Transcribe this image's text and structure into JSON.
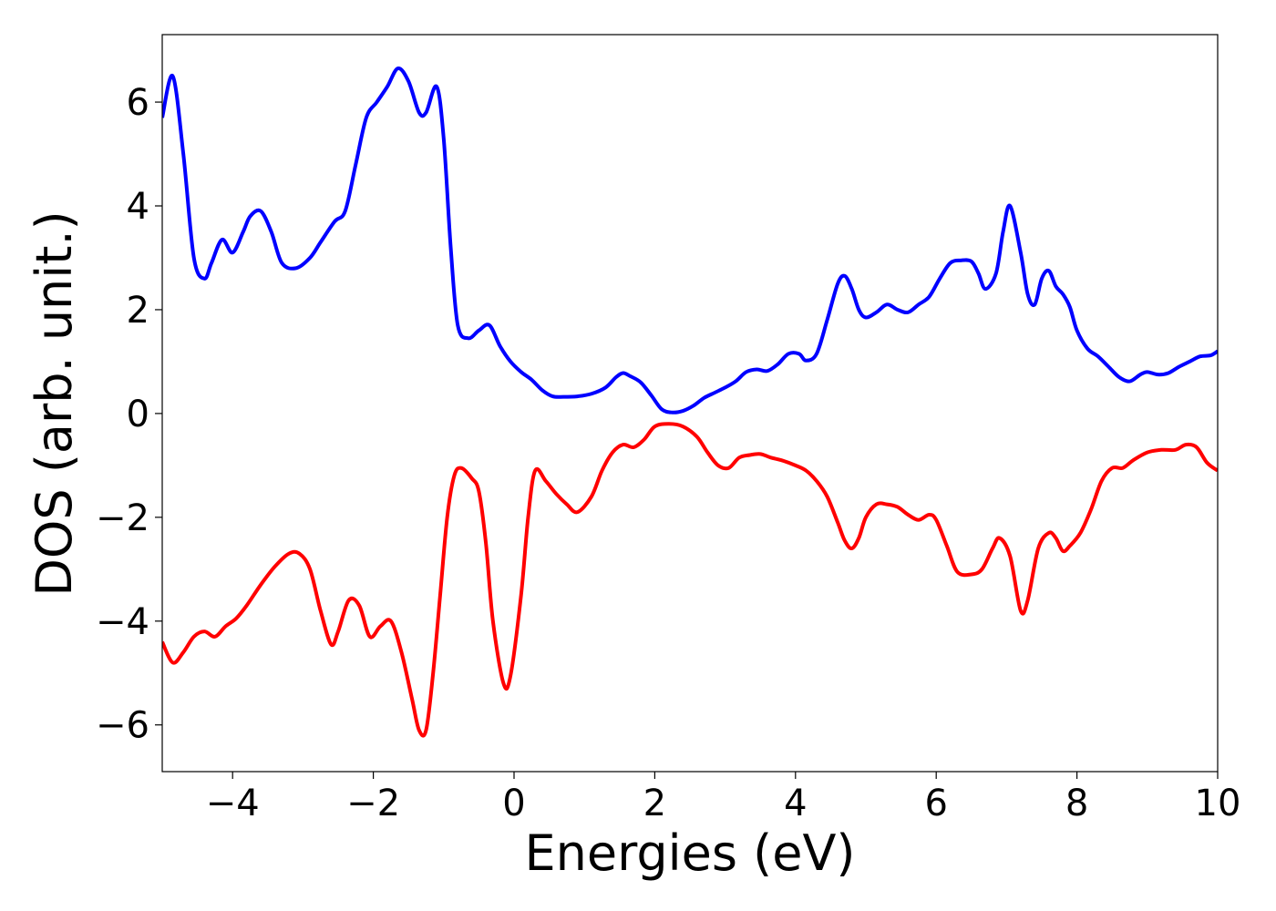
{
  "chart_data": {
    "type": "line",
    "title": "",
    "xlabel": "Energies (eV)",
    "ylabel": "DOS (arb. unit.)",
    "xlim": [
      -5,
      10
    ],
    "ylim": [
      -6.9,
      7.3
    ],
    "grid": false,
    "legend": "none",
    "x_ticks": [
      -4,
      -2,
      0,
      2,
      4,
      6,
      8,
      10
    ],
    "x_tick_labels": [
      "−4",
      "−2",
      "0",
      "2",
      "4",
      "6",
      "8",
      "10"
    ],
    "y_ticks": [
      -6,
      -4,
      -2,
      0,
      2,
      4,
      6
    ],
    "y_tick_labels": [
      "−6",
      "−4",
      "−2",
      "0",
      "2",
      "4",
      "6"
    ],
    "series": [
      {
        "color": "#0000ff",
        "x": [
          -5.0,
          -4.85,
          -4.7,
          -4.55,
          -4.4,
          -4.3,
          -4.15,
          -4.0,
          -3.85,
          -3.75,
          -3.6,
          -3.45,
          -3.3,
          -3.1,
          -2.9,
          -2.75,
          -2.55,
          -2.4,
          -2.25,
          -2.1,
          -1.95,
          -1.8,
          -1.65,
          -1.5,
          -1.35,
          -1.25,
          -1.1,
          -1.0,
          -0.9,
          -0.8,
          -0.65,
          -0.5,
          -0.35,
          -0.2,
          -0.05,
          0.1,
          0.25,
          0.4,
          0.55,
          0.7,
          0.9,
          1.1,
          1.3,
          1.45,
          1.55,
          1.65,
          1.8,
          1.95,
          2.1,
          2.25,
          2.4,
          2.55,
          2.7,
          2.85,
          3.0,
          3.15,
          3.3,
          3.45,
          3.6,
          3.75,
          3.9,
          4.05,
          4.15,
          4.3,
          4.45,
          4.6,
          4.7,
          4.8,
          4.9,
          5.0,
          5.15,
          5.3,
          5.45,
          5.6,
          5.75,
          5.9,
          6.05,
          6.2,
          6.35,
          6.5,
          6.6,
          6.7,
          6.85,
          6.95,
          7.05,
          7.2,
          7.3,
          7.4,
          7.5,
          7.6,
          7.7,
          7.8,
          7.9,
          8.0,
          8.15,
          8.3,
          8.45,
          8.6,
          8.75,
          8.9,
          9.0,
          9.15,
          9.3,
          9.45,
          9.6,
          9.75,
          9.9,
          10.0
        ],
        "y": [
          5.7,
          6.5,
          5.0,
          3.0,
          2.6,
          2.9,
          3.35,
          3.1,
          3.5,
          3.8,
          3.9,
          3.5,
          2.9,
          2.8,
          3.0,
          3.3,
          3.7,
          3.9,
          4.8,
          5.7,
          6.0,
          6.3,
          6.65,
          6.4,
          5.8,
          5.8,
          6.3,
          5.3,
          3.2,
          1.7,
          1.45,
          1.6,
          1.7,
          1.3,
          1.0,
          0.8,
          0.65,
          0.45,
          0.33,
          0.32,
          0.33,
          0.38,
          0.5,
          0.7,
          0.78,
          0.72,
          0.6,
          0.35,
          0.08,
          0.02,
          0.05,
          0.15,
          0.3,
          0.4,
          0.5,
          0.62,
          0.8,
          0.85,
          0.82,
          0.95,
          1.15,
          1.15,
          1.02,
          1.15,
          1.8,
          2.5,
          2.65,
          2.4,
          2.0,
          1.85,
          1.95,
          2.1,
          2.0,
          1.95,
          2.1,
          2.25,
          2.6,
          2.9,
          2.95,
          2.93,
          2.7,
          2.4,
          2.7,
          3.5,
          4.0,
          3.1,
          2.3,
          2.1,
          2.6,
          2.75,
          2.45,
          2.3,
          2.05,
          1.6,
          1.25,
          1.1,
          0.9,
          0.7,
          0.62,
          0.75,
          0.8,
          0.75,
          0.78,
          0.9,
          1.0,
          1.1,
          1.12,
          1.2
        ]
      },
      {
        "color": "#ff0000",
        "x": [
          -5.0,
          -4.85,
          -4.7,
          -4.55,
          -4.4,
          -4.25,
          -4.1,
          -3.95,
          -3.8,
          -3.6,
          -3.4,
          -3.2,
          -3.05,
          -2.9,
          -2.75,
          -2.6,
          -2.5,
          -2.35,
          -2.2,
          -2.05,
          -1.9,
          -1.75,
          -1.6,
          -1.45,
          -1.35,
          -1.25,
          -1.15,
          -1.05,
          -0.95,
          -0.85,
          -0.75,
          -0.6,
          -0.5,
          -0.4,
          -0.3,
          -0.15,
          -0.05,
          0.1,
          0.2,
          0.3,
          0.45,
          0.6,
          0.75,
          0.9,
          1.1,
          1.25,
          1.4,
          1.55,
          1.7,
          1.85,
          2.0,
          2.2,
          2.4,
          2.6,
          2.75,
          2.9,
          3.05,
          3.2,
          3.35,
          3.5,
          3.65,
          3.8,
          4.0,
          4.15,
          4.3,
          4.45,
          4.6,
          4.7,
          4.8,
          4.9,
          5.0,
          5.15,
          5.3,
          5.45,
          5.6,
          5.75,
          5.9,
          6.0,
          6.15,
          6.3,
          6.5,
          6.65,
          6.8,
          6.9,
          7.05,
          7.2,
          7.3,
          7.45,
          7.6,
          7.7,
          7.8,
          7.9,
          8.05,
          8.2,
          8.35,
          8.5,
          8.65,
          8.8,
          9.0,
          9.2,
          9.4,
          9.55,
          9.7,
          9.85,
          10.0
        ],
        "y": [
          -4.4,
          -4.8,
          -4.6,
          -4.3,
          -4.2,
          -4.3,
          -4.1,
          -3.95,
          -3.7,
          -3.3,
          -2.95,
          -2.7,
          -2.7,
          -3.0,
          -3.8,
          -4.45,
          -4.2,
          -3.6,
          -3.7,
          -4.3,
          -4.1,
          -4.0,
          -4.6,
          -5.5,
          -6.1,
          -6.1,
          -5.0,
          -3.5,
          -2.0,
          -1.2,
          -1.05,
          -1.25,
          -1.5,
          -2.5,
          -4.0,
          -5.2,
          -5.05,
          -3.5,
          -2.0,
          -1.1,
          -1.3,
          -1.55,
          -1.75,
          -1.9,
          -1.6,
          -1.1,
          -0.75,
          -0.6,
          -0.65,
          -0.5,
          -0.25,
          -0.2,
          -0.25,
          -0.45,
          -0.75,
          -1.0,
          -1.05,
          -0.85,
          -0.8,
          -0.78,
          -0.85,
          -0.9,
          -1.0,
          -1.1,
          -1.3,
          -1.6,
          -2.1,
          -2.45,
          -2.6,
          -2.4,
          -2.0,
          -1.75,
          -1.75,
          -1.8,
          -1.95,
          -2.05,
          -1.95,
          -2.05,
          -2.55,
          -3.05,
          -3.1,
          -3.0,
          -2.6,
          -2.4,
          -2.75,
          -3.8,
          -3.6,
          -2.6,
          -2.3,
          -2.4,
          -2.65,
          -2.55,
          -2.3,
          -1.85,
          -1.3,
          -1.05,
          -1.05,
          -0.9,
          -0.75,
          -0.7,
          -0.7,
          -0.6,
          -0.65,
          -0.95,
          -1.1
        ]
      }
    ]
  }
}
